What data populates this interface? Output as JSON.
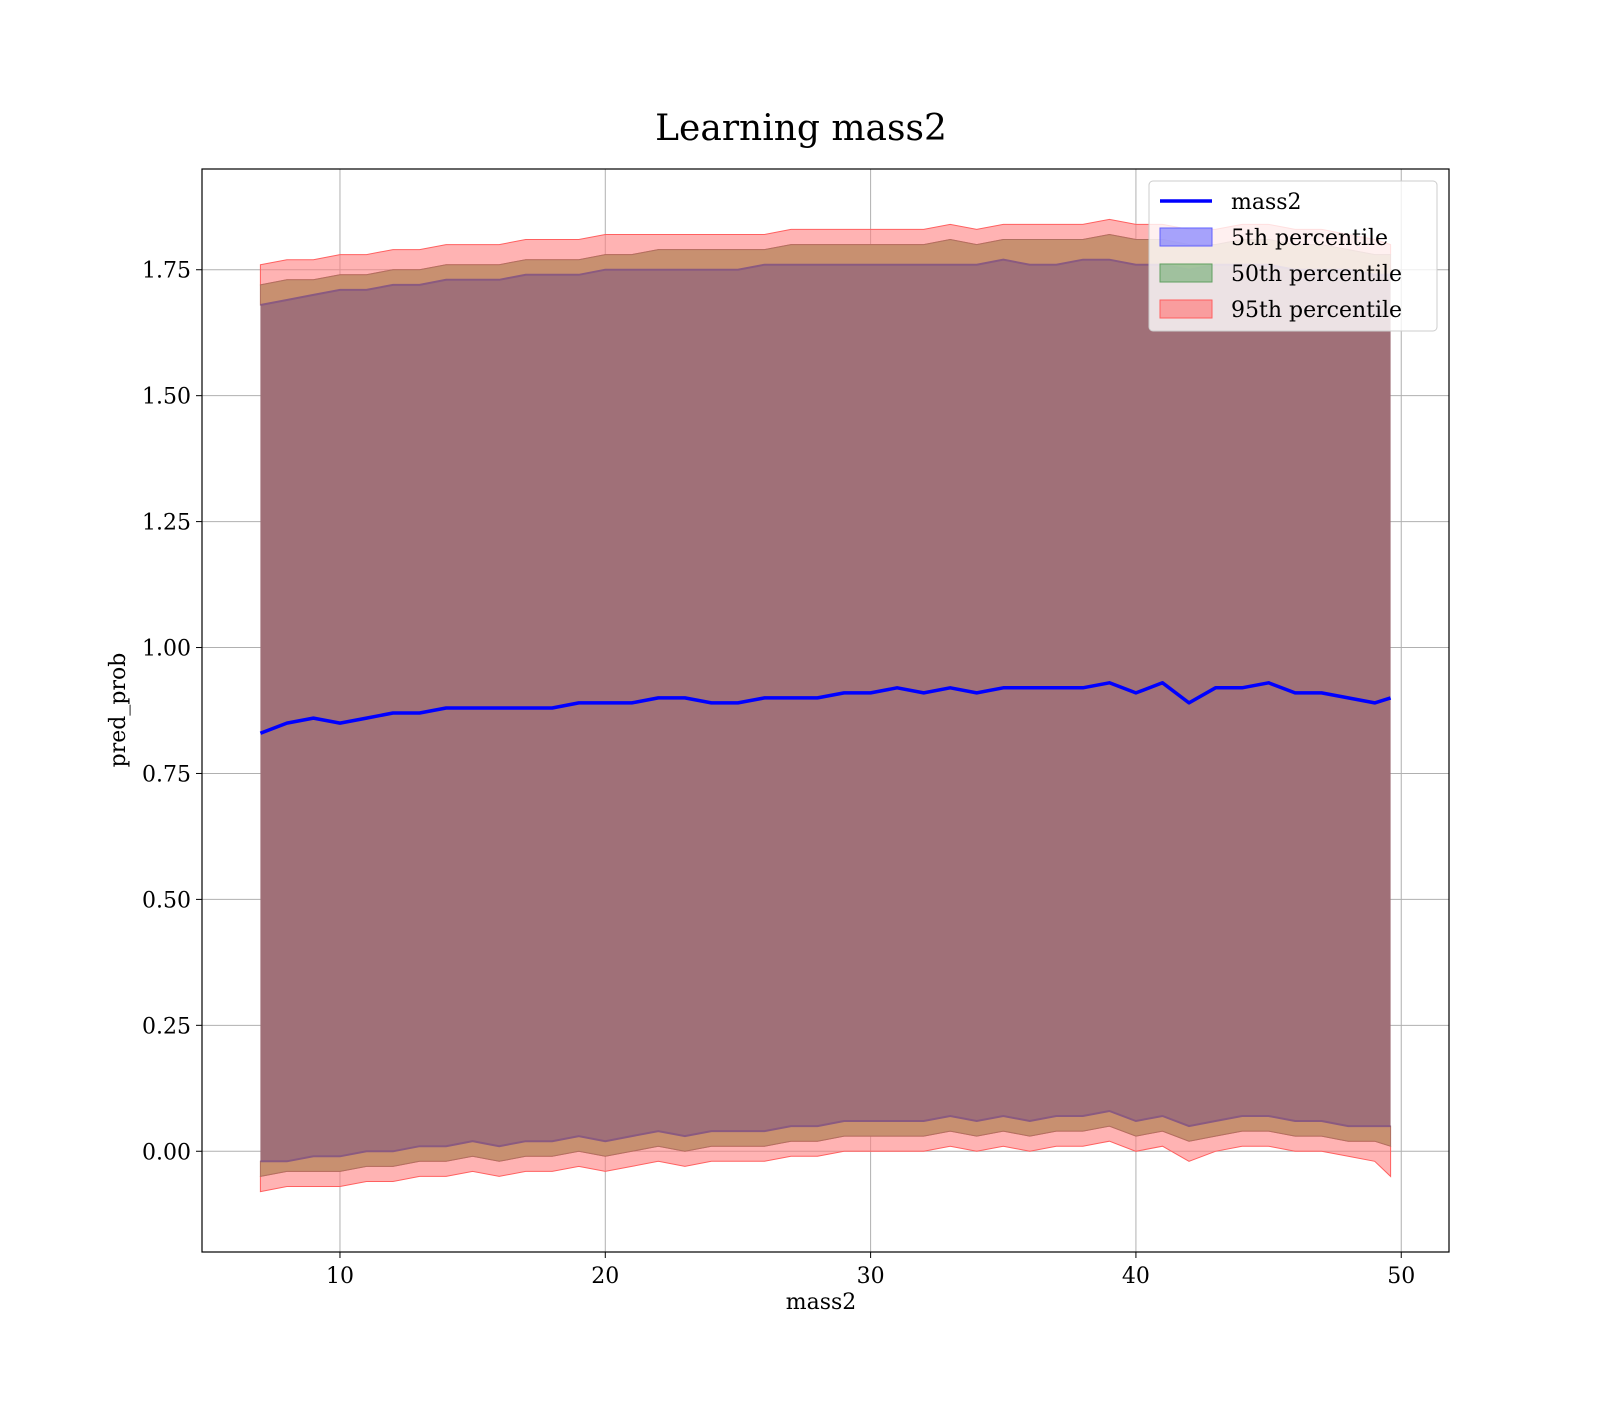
{
  "chart_data": {
    "type": "area",
    "title": "Learning mass2",
    "xlabel": "mass2",
    "ylabel": "pred_prob",
    "xlim": [
      4.8,
      51.8
    ],
    "ylim": [
      -0.2,
      1.95
    ],
    "grid": true,
    "legend_position": "top-right",
    "x_ticks": [
      10,
      20,
      30,
      40,
      50
    ],
    "x_tick_labels": [
      "10",
      "20",
      "30",
      "40",
      "50"
    ],
    "y_ticks": [
      0.0,
      0.25,
      0.5,
      0.75,
      1.0,
      1.25,
      1.5,
      1.75
    ],
    "y_tick_labels": [
      "0.00",
      "0.25",
      "0.50",
      "0.75",
      "1.00",
      "1.25",
      "1.50",
      "1.75"
    ],
    "colors": {
      "line": "#0000ff",
      "band_5th": "#8080ff",
      "band_50th": "#80b380",
      "band_95th": "#ff8080",
      "fill_body": "#a07078"
    },
    "x": [
      7.0,
      8.0,
      9.0,
      10.0,
      11.0,
      12.0,
      13.0,
      14.0,
      15.0,
      16.0,
      17.0,
      18.0,
      19.0,
      20.0,
      21.0,
      22.0,
      23.0,
      24.0,
      25.0,
      26.0,
      27.0,
      28.0,
      29.0,
      30.0,
      31.0,
      32.0,
      33.0,
      34.0,
      35.0,
      36.0,
      37.0,
      38.0,
      39.0,
      40.0,
      41.0,
      42.0,
      43.0,
      44.0,
      45.0,
      46.0,
      47.0,
      48.0,
      49.0,
      49.6
    ],
    "series": [
      {
        "name": "mass2",
        "values": [
          0.83,
          0.85,
          0.86,
          0.85,
          0.86,
          0.87,
          0.87,
          0.88,
          0.88,
          0.88,
          0.88,
          0.88,
          0.89,
          0.89,
          0.89,
          0.9,
          0.9,
          0.89,
          0.89,
          0.9,
          0.9,
          0.9,
          0.91,
          0.91,
          0.92,
          0.91,
          0.92,
          0.91,
          0.92,
          0.92,
          0.92,
          0.92,
          0.93,
          0.91,
          0.93,
          0.89,
          0.92,
          0.92,
          0.93,
          0.91,
          0.91,
          0.9,
          0.89,
          0.9
        ]
      },
      {
        "name": "5th percentile",
        "lower": [
          -0.02,
          -0.02,
          -0.01,
          -0.01,
          0.0,
          0.0,
          0.01,
          0.01,
          0.02,
          0.01,
          0.02,
          0.02,
          0.03,
          0.02,
          0.03,
          0.04,
          0.03,
          0.04,
          0.04,
          0.04,
          0.05,
          0.05,
          0.06,
          0.06,
          0.06,
          0.06,
          0.07,
          0.06,
          0.07,
          0.06,
          0.07,
          0.07,
          0.08,
          0.06,
          0.07,
          0.05,
          0.06,
          0.07,
          0.07,
          0.06,
          0.06,
          0.05,
          0.05,
          0.05
        ],
        "upper": [
          1.68,
          1.69,
          1.7,
          1.71,
          1.71,
          1.72,
          1.72,
          1.73,
          1.73,
          1.73,
          1.74,
          1.74,
          1.74,
          1.75,
          1.75,
          1.75,
          1.75,
          1.75,
          1.75,
          1.76,
          1.76,
          1.76,
          1.76,
          1.76,
          1.76,
          1.76,
          1.76,
          1.76,
          1.77,
          1.76,
          1.76,
          1.77,
          1.77,
          1.76,
          1.76,
          1.75,
          1.76,
          1.76,
          1.76,
          1.75,
          1.75,
          1.75,
          1.74,
          1.74
        ]
      },
      {
        "name": "50th percentile",
        "lower": [
          -0.05,
          -0.04,
          -0.04,
          -0.04,
          -0.03,
          -0.03,
          -0.02,
          -0.02,
          -0.01,
          -0.02,
          -0.01,
          -0.01,
          0.0,
          -0.01,
          0.0,
          0.01,
          0.0,
          0.01,
          0.01,
          0.01,
          0.02,
          0.02,
          0.03,
          0.03,
          0.03,
          0.03,
          0.04,
          0.03,
          0.04,
          0.03,
          0.04,
          0.04,
          0.05,
          0.03,
          0.04,
          0.02,
          0.03,
          0.04,
          0.04,
          0.03,
          0.03,
          0.02,
          0.02,
          0.01
        ],
        "upper": [
          1.72,
          1.73,
          1.73,
          1.74,
          1.74,
          1.75,
          1.75,
          1.76,
          1.76,
          1.76,
          1.77,
          1.77,
          1.77,
          1.78,
          1.78,
          1.79,
          1.79,
          1.79,
          1.79,
          1.79,
          1.8,
          1.8,
          1.8,
          1.8,
          1.8,
          1.8,
          1.81,
          1.8,
          1.81,
          1.81,
          1.81,
          1.81,
          1.82,
          1.81,
          1.81,
          1.8,
          1.8,
          1.81,
          1.81,
          1.8,
          1.8,
          1.79,
          1.78,
          1.78
        ]
      },
      {
        "name": "95th percentile",
        "lower": [
          -0.08,
          -0.07,
          -0.07,
          -0.07,
          -0.06,
          -0.06,
          -0.05,
          -0.05,
          -0.04,
          -0.05,
          -0.04,
          -0.04,
          -0.03,
          -0.04,
          -0.03,
          -0.02,
          -0.03,
          -0.02,
          -0.02,
          -0.02,
          -0.01,
          -0.01,
          0.0,
          0.0,
          0.0,
          0.0,
          0.01,
          0.0,
          0.01,
          0.0,
          0.01,
          0.01,
          0.02,
          0.0,
          0.01,
          -0.02,
          0.0,
          0.01,
          0.01,
          0.0,
          0.0,
          -0.01,
          -0.02,
          -0.05
        ],
        "upper": [
          1.76,
          1.77,
          1.77,
          1.78,
          1.78,
          1.79,
          1.79,
          1.8,
          1.8,
          1.8,
          1.81,
          1.81,
          1.81,
          1.82,
          1.82,
          1.82,
          1.82,
          1.82,
          1.82,
          1.82,
          1.83,
          1.83,
          1.83,
          1.83,
          1.83,
          1.83,
          1.84,
          1.83,
          1.84,
          1.84,
          1.84,
          1.84,
          1.85,
          1.84,
          1.84,
          1.83,
          1.83,
          1.84,
          1.84,
          1.83,
          1.83,
          1.82,
          1.81,
          1.8
        ]
      }
    ]
  }
}
